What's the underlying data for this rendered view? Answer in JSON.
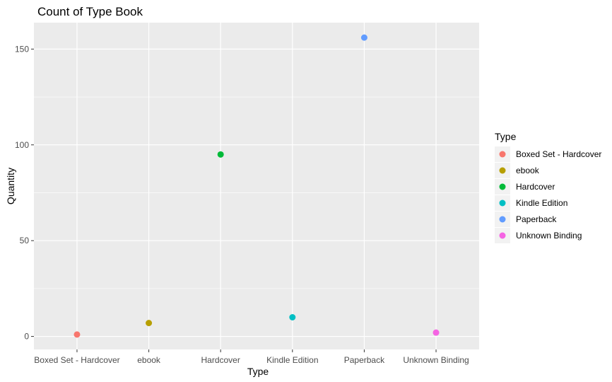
{
  "chart_data": {
    "type": "scatter",
    "title": "Count of Type Book",
    "xlabel": "Type",
    "ylabel": "Quantity",
    "categories": [
      "Boxed Set - Hardcover",
      "ebook",
      "Hardcover",
      "Kindle Edition",
      "Paperback",
      "Unknown Binding"
    ],
    "values": [
      1,
      7,
      95,
      10,
      156,
      2
    ],
    "colors": [
      "#F8766D",
      "#B79F00",
      "#00BA38",
      "#00BFC4",
      "#619CFF",
      "#F564E3"
    ],
    "ylim": [
      -6.8,
      163.8
    ],
    "yticks": [
      0,
      50,
      100,
      150
    ],
    "ytick_labels": [
      "0",
      "50",
      "100",
      "150"
    ],
    "grid": true,
    "legend": {
      "title": "Type",
      "position": "right",
      "entries": [
        "Boxed Set - Hardcover",
        "ebook",
        "Hardcover",
        "Kindle Edition",
        "Paperback",
        "Unknown Binding"
      ]
    }
  }
}
